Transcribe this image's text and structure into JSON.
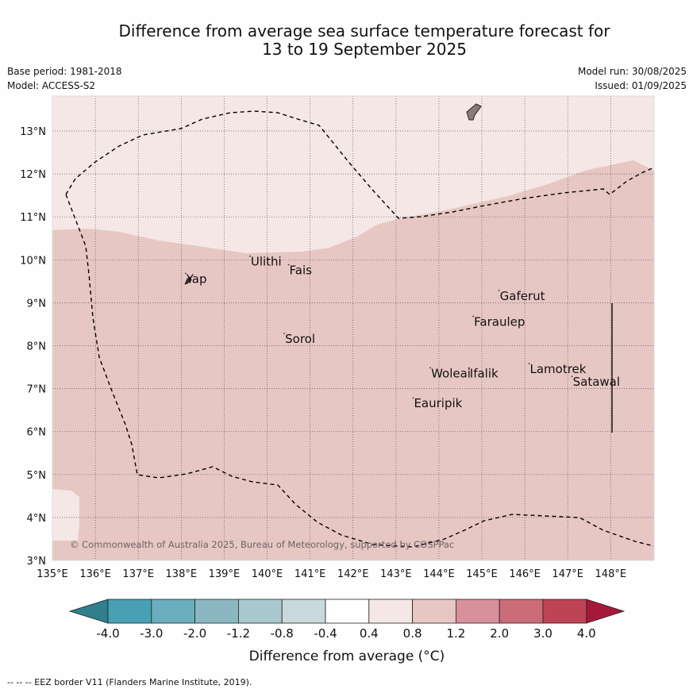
{
  "title": {
    "line1": "Difference from average sea surface temperature forecast for",
    "line2": "13 to 19 September 2025"
  },
  "meta": {
    "base_period": "Base period: 1981-2018",
    "model": "Model: ACCESS-S2",
    "model_run": "Model run: 30/08/2025",
    "issued": "Issued: 01/09/2025"
  },
  "map": {
    "lon_range": [
      135,
      149
    ],
    "lat_range": [
      3,
      13.8
    ],
    "x_ticks": [
      "135°E",
      "136°E",
      "137°E",
      "138°E",
      "139°E",
      "140°E",
      "141°E",
      "142°E",
      "143°E",
      "144°E",
      "145°E",
      "146°E",
      "147°E",
      "148°E"
    ],
    "y_ticks": [
      "3°N",
      "4°N",
      "5°N",
      "6°N",
      "7°N",
      "8°N",
      "9°N",
      "10°N",
      "11°N",
      "12°N",
      "13°N"
    ],
    "copyright": "© Commonwealth of Australia 2025, Bureau of Meteorology, supported by COSPPac",
    "colors": {
      "class_0_4_to_0_8": "#f4e7e6",
      "class_0_8_to_1_2": "#e7c7c3",
      "land": "#8a7a78",
      "eez_line": "#000000"
    },
    "places": [
      {
        "name": "Ulithi",
        "lon": 139.6,
        "lat": 9.9
      },
      {
        "name": "Fais",
        "lon": 140.5,
        "lat": 9.7
      },
      {
        "name": "Yap",
        "lon": 138.1,
        "lat": 9.5
      },
      {
        "name": "Gaferut",
        "lon": 145.4,
        "lat": 9.1
      },
      {
        "name": "Faraulep",
        "lon": 144.8,
        "lat": 8.5
      },
      {
        "name": "Sorol",
        "lon": 140.4,
        "lat": 8.1
      },
      {
        "name": "Lamotrek",
        "lon": 146.1,
        "lat": 7.4
      },
      {
        "name": "Woleai",
        "lon": 143.8,
        "lat": 7.3
      },
      {
        "name": "Ifalik",
        "lon": 144.7,
        "lat": 7.3
      },
      {
        "name": "Satawal",
        "lon": 147.1,
        "lat": 7.1
      },
      {
        "name": "Eauripik",
        "lon": 143.4,
        "lat": 6.6
      }
    ]
  },
  "colorbar": {
    "ticks": [
      "-4.0",
      "-3.0",
      "-2.0",
      "-1.2",
      "-0.8",
      "-0.4",
      "0.4",
      "0.8",
      "1.2",
      "2.0",
      "3.0",
      "4.0"
    ],
    "colors": [
      "#2f7f8c",
      "#48a1b3",
      "#6aaebd",
      "#8ab7c2",
      "#a9c9cf",
      "#c7d9dc",
      "#ffffff",
      "#f4e7e6",
      "#e7c7c3",
      "#d8909a",
      "#cb6c78",
      "#be4455",
      "#a5183a"
    ],
    "label": "Difference from average (°C)"
  },
  "footer": {
    "eez_legend": "--  --  -- EEZ border V11 (Flanders Marine Institute, 2019)."
  }
}
